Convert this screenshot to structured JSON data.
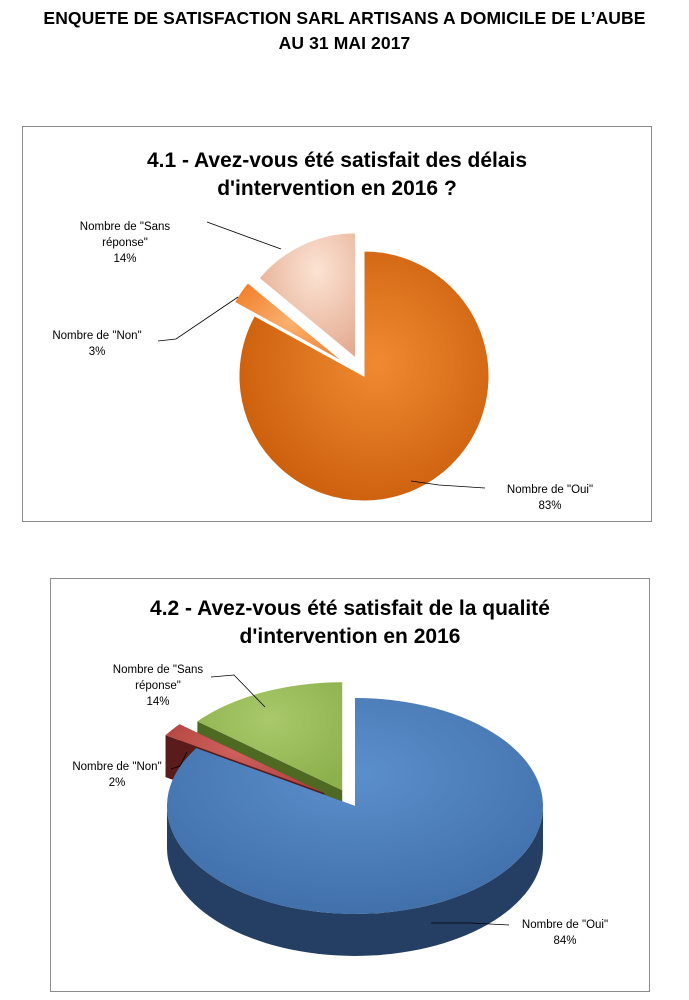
{
  "page": {
    "title_line1": "ENQUETE DE SATISFACTION SARL ARTISANS A DOMICILE DE L’AUBE",
    "title_line2": "AU 31 MAI 2017"
  },
  "chart_data": [
    {
      "type": "pie",
      "title": "4.1 - Avez-vous été satisfait des délais d'intervention en 2016 ?",
      "title_lines": [
        "4.1 - Avez-vous été satisfait des délais",
        "d'intervention en 2016 ?"
      ],
      "labels": [
        "Nombre de \"Oui\"",
        "Nombre de \"Non\"",
        "Nombre de \"Sans réponse\""
      ],
      "values": [
        83,
        3,
        14
      ],
      "value_labels": [
        "83%",
        "3%",
        "14%"
      ],
      "colors": [
        "#E36C0A",
        "#F79646",
        "#F2B9A0"
      ],
      "style": "exploded-pie"
    },
    {
      "type": "pie",
      "title": "4.2 - Avez-vous été satisfait de la qualité d'intervention en 2016",
      "title_lines": [
        "4.2 - Avez-vous été satisfait de la qualité",
        "d'intervention en 2016"
      ],
      "labels": [
        "Nombre de \"Oui\"",
        "Nombre de \"Non\"",
        "Nombre de \"Sans réponse\""
      ],
      "values": [
        84,
        2,
        14
      ],
      "value_labels": [
        "84%",
        "2%",
        "14%"
      ],
      "colors": [
        "#4F81BD",
        "#C0504D",
        "#9BBB59"
      ],
      "style": "exploded-3d-pie"
    }
  ]
}
